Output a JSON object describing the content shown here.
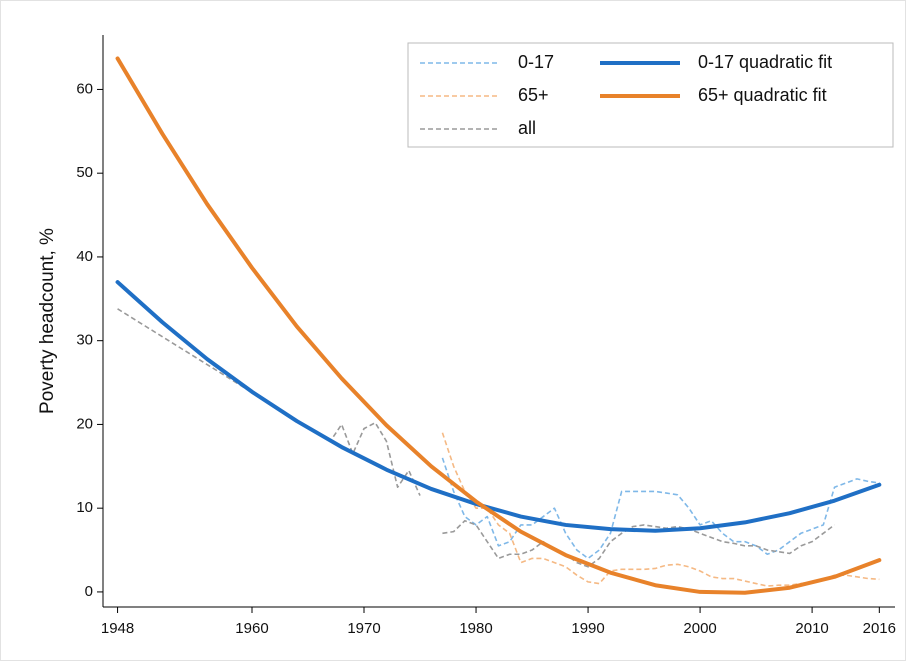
{
  "chart_data": {
    "type": "line",
    "y_label": "Poverty headcount, %",
    "x": [
      1948,
      1967,
      1968,
      1969,
      1970,
      1971,
      1972,
      1973,
      1974,
      1975,
      1976,
      1977,
      1978,
      1979,
      1980,
      1981,
      1982,
      1983,
      1984,
      1985,
      1986,
      1987,
      1988,
      1989,
      1990,
      1991,
      1992,
      1993,
      1994,
      1995,
      1996,
      1997,
      1998,
      1999,
      2000,
      2001,
      2002,
      2003,
      2004,
      2005,
      2006,
      2007,
      2008,
      2009,
      2010,
      2011,
      2012,
      2013,
      2014,
      2015,
      2016
    ],
    "xlim": [
      1946.7,
      2017.4
    ],
    "xticks": [
      1948,
      1960,
      1970,
      1980,
      1990,
      2000,
      2010,
      2016
    ],
    "ylim": [
      -1.8,
      66.5
    ],
    "yticks": [
      0,
      10,
      20,
      30,
      40,
      50,
      60
    ],
    "legend": "top-right",
    "series": [
      {
        "name": "0-17",
        "color": "#7fb8e8",
        "style": "dashed",
        "values": [
          null,
          null,
          null,
          null,
          null,
          null,
          null,
          null,
          null,
          null,
          null,
          16,
          12,
          9,
          8,
          9,
          5.5,
          6,
          8,
          8,
          9,
          10,
          7,
          5,
          4,
          5,
          7,
          12,
          12,
          12,
          12,
          11.8,
          11.6,
          10,
          8,
          8.5,
          7,
          6,
          6,
          5.5,
          4.5,
          5,
          6,
          7,
          7.5,
          8,
          12.5,
          13,
          13.5,
          13.2,
          13
        ]
      },
      {
        "name": "65+",
        "color": "#f5b984",
        "style": "dashed",
        "values": [
          null,
          null,
          null,
          null,
          null,
          null,
          null,
          null,
          null,
          null,
          null,
          19,
          15,
          12,
          10,
          10,
          8,
          7,
          3.5,
          4,
          4,
          3.5,
          3,
          2,
          1.2,
          1,
          2.5,
          2.7,
          2.7,
          2.7,
          2.8,
          3.2,
          3.3,
          3,
          2.5,
          1.8,
          1.6,
          1.6,
          1.3,
          1,
          0.7,
          0.8,
          0.8,
          1,
          1.2,
          1.5,
          2,
          2,
          1.8,
          1.6,
          1.5
        ]
      },
      {
        "name": "all",
        "color": "#9a9a9a",
        "style": "dashed",
        "values": [
          33.8,
          18,
          20,
          16.5,
          19.5,
          20.2,
          18,
          12.5,
          14.5,
          11.5,
          null,
          7,
          7.2,
          8.5,
          8,
          6,
          4,
          4.5,
          4.5,
          5,
          6,
          5,
          4.5,
          3.5,
          3,
          4,
          6,
          7,
          7.8,
          8,
          7.8,
          7.6,
          7.8,
          7.5,
          7,
          6.5,
          6,
          5.8,
          5.5,
          5.5,
          5,
          4.8,
          4.6,
          5.5,
          6,
          7,
          8,
          null,
          null,
          null,
          null
        ]
      },
      {
        "name": "0-17 quadratic fit",
        "color": "#1f6fc5",
        "style": "solid",
        "x": [
          1948,
          1952,
          1956,
          1960,
          1964,
          1968,
          1972,
          1976,
          1980,
          1984,
          1988,
          1992,
          1996,
          2000,
          2004,
          2008,
          2012,
          2016
        ],
        "values": [
          37.0,
          32.2,
          27.8,
          23.9,
          20.4,
          17.3,
          14.6,
          12.3,
          10.5,
          9.0,
          8.0,
          7.5,
          7.3,
          7.6,
          8.3,
          9.4,
          10.9,
          12.8
        ]
      },
      {
        "name": "65+ quadratic fit",
        "color": "#e8822a",
        "style": "solid",
        "x": [
          1948,
          1952,
          1956,
          1960,
          1964,
          1968,
          1972,
          1976,
          1980,
          1984,
          1988,
          1992,
          1996,
          2000,
          2004,
          2008,
          2012,
          2016
        ],
        "values": [
          63.7,
          54.7,
          46.3,
          38.7,
          31.7,
          25.5,
          19.9,
          15.0,
          10.8,
          7.2,
          4.4,
          2.3,
          0.8,
          0.0,
          -0.1,
          0.5,
          1.8,
          3.8
        ]
      }
    ]
  }
}
